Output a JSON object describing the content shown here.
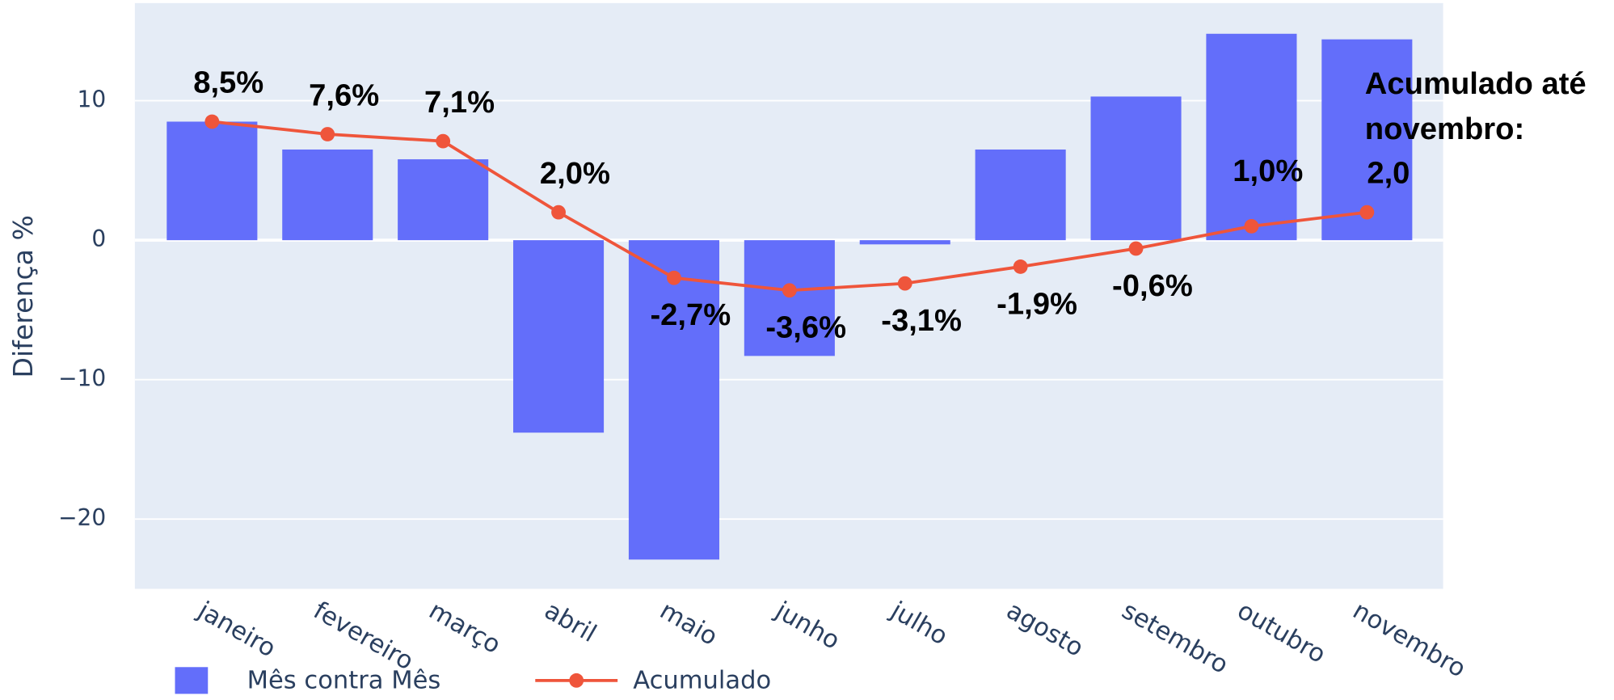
{
  "chart_data": {
    "type": "bar",
    "y_label": "Diferença %",
    "categories": [
      "janeiro",
      "fevereiro",
      "março",
      "abril",
      "maio",
      "junho",
      "julho",
      "agosto",
      "setembro",
      "outubro",
      "novembro"
    ],
    "series": [
      {
        "name": "Mês contra Mês",
        "type": "bar",
        "color": "#636efa",
        "values": [
          8.5,
          6.5,
          5.8,
          -13.8,
          -22.9,
          -8.3,
          -0.3,
          6.5,
          10.3,
          14.8,
          14.4
        ]
      },
      {
        "name": "Acumulado",
        "type": "line",
        "color": "#ef553b",
        "values": [
          8.5,
          7.6,
          7.1,
          2.0,
          -2.7,
          -3.6,
          -3.1,
          -1.9,
          -0.6,
          1.0,
          2.0
        ],
        "value_labels": [
          "8,5%",
          "7,6%",
          "7,1%",
          "2,0%",
          "-2,7%",
          "-3,6%",
          "-3,1%",
          "-1,9%",
          "-0,6%",
          "1,0%",
          "2,0"
        ]
      }
    ],
    "annotation": "Acumulado até novembro:",
    "ylim": [
      -25,
      17
    ],
    "yticks": [
      {
        "value": -20,
        "label": "−20"
      },
      {
        "value": -10,
        "label": "−10"
      },
      0,
      10
    ],
    "grid": true,
    "legend": "bottom-left"
  }
}
